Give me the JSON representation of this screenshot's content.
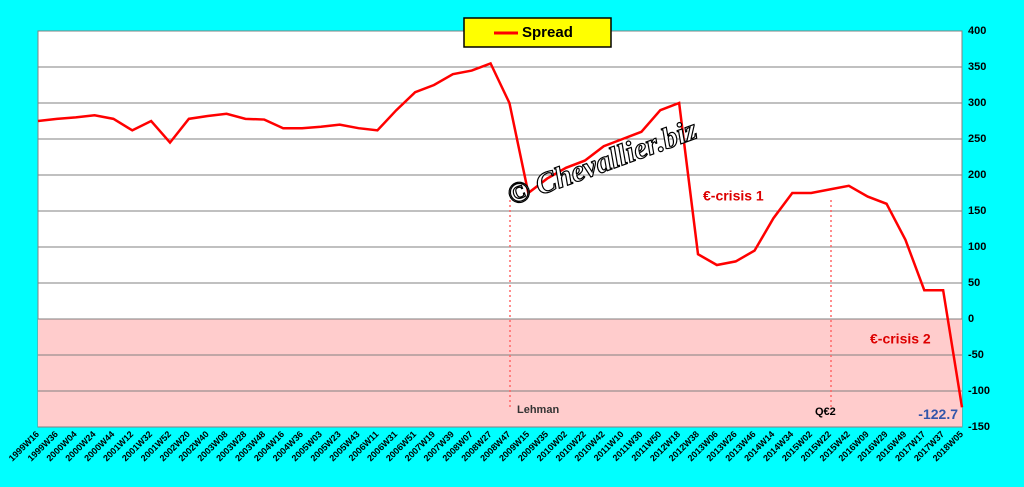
{
  "chart_data": {
    "type": "line",
    "categories": [
      "1999W16",
      "1999W36",
      "2000W04",
      "2000W24",
      "2000W44",
      "2001W12",
      "2001W32",
      "2001W52",
      "2002W20",
      "2002W40",
      "2003W08",
      "2003W28",
      "2003W48",
      "2004W16",
      "2004W36",
      "2005W03",
      "2005W23",
      "2005W43",
      "2006W11",
      "2006W31",
      "2006W51",
      "2007W19",
      "2007W39",
      "2008W07",
      "2008W27",
      "2008W47",
      "2009W15",
      "2009W35",
      "2010W02",
      "2010W22",
      "2010W42",
      "2011W10",
      "2011W30",
      "2011W50",
      "2012W18",
      "2012W38",
      "2013W06",
      "2013W26",
      "2013W46",
      "2014W14",
      "2014W34",
      "2015W02",
      "2015W22",
      "2015W42",
      "2016W09",
      "2016W29",
      "2016W49",
      "2017W17",
      "2017W37",
      "2018W05"
    ],
    "series": [
      {
        "name": "Spread",
        "color": "#ff0000",
        "values": [
          275,
          278,
          280,
          283,
          278,
          262,
          275,
          245,
          278,
          282,
          285,
          278,
          277,
          265,
          265,
          267,
          270,
          265,
          262,
          290,
          315,
          325,
          340,
          345,
          355,
          300,
          175,
          195,
          210,
          220,
          240,
          250,
          260,
          290,
          300,
          90,
          75,
          80,
          95,
          140,
          175,
          175,
          180,
          185,
          170,
          160,
          110,
          40,
          40,
          -122.7
        ]
      }
    ],
    "ylim": [
      -150,
      400
    ],
    "yticks": [
      -150,
      -100,
      -50,
      0,
      50,
      100,
      150,
      200,
      250,
      300,
      350,
      400
    ],
    "grid": true,
    "annotations": [
      "Lehman",
      "Q€2",
      "€-crisis  1",
      "€-crisis 2"
    ],
    "watermark": "© Chevallier.biz"
  }
}
